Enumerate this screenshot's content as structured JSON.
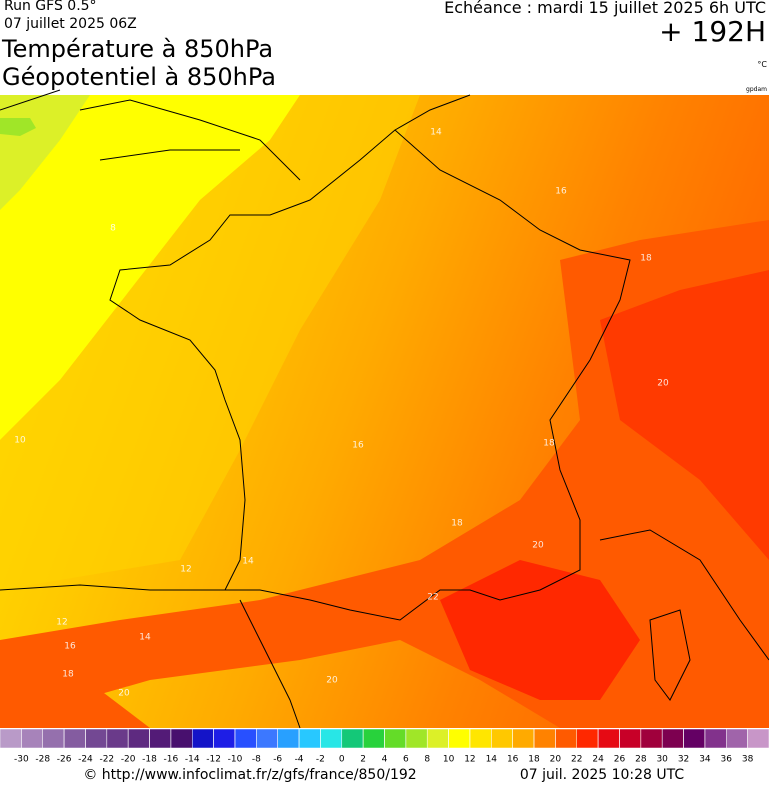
{
  "header": {
    "run": "Run GFS 0.5°",
    "run_date": "07 juillet 2025 06Z",
    "title_line1": "Température à 850hPa",
    "title_line2": "Géopotentiel à 850hPa",
    "valid_time": "Echéance : mardi 15 juillet 2025 6h UTC",
    "lead_time": "+ 192H",
    "unit": "°C",
    "contour_unit": "gpdam"
  },
  "map": {
    "contour_labels": [
      14,
      16,
      18,
      8,
      20,
      18,
      10,
      16,
      18,
      20,
      12,
      14,
      12,
      14,
      16,
      18,
      20,
      20,
      22
    ]
  },
  "scale": {
    "range": [
      -32,
      40
    ],
    "ticks": [
      -30,
      -28,
      -26,
      -24,
      -22,
      -20,
      -18,
      -16,
      -14,
      -12,
      -10,
      -8,
      -6,
      -4,
      -2,
      0,
      2,
      4,
      6,
      8,
      10,
      12,
      14,
      16,
      18,
      20,
      22,
      24,
      26,
      28,
      30,
      32,
      34,
      36,
      38
    ],
    "colors": [
      "#b99ac8",
      "#a783ba",
      "#9570ad",
      "#845ca0",
      "#734893",
      "#6a3a8a",
      "#5e2a80",
      "#531b77",
      "#48106e",
      "#1414c8",
      "#1e1ee6",
      "#2850ff",
      "#3c78ff",
      "#28a0ff",
      "#28c8ff",
      "#28e6e6",
      "#14c878",
      "#28d23c",
      "#64dc28",
      "#a0e628",
      "#dcf028",
      "#ffff00",
      "#ffe600",
      "#ffc800",
      "#ffaa00",
      "#ff8200",
      "#ff5a00",
      "#ff2800",
      "#e60a14",
      "#c80028",
      "#a0003c",
      "#7d0050",
      "#640064",
      "#82328c",
      "#a064aa",
      "#c896c8"
    ]
  },
  "footer": {
    "source": "© http://www.infoclimat.fr/z/gfs/france/850/192",
    "generated": "07 juil. 2025 10:28 UTC"
  }
}
